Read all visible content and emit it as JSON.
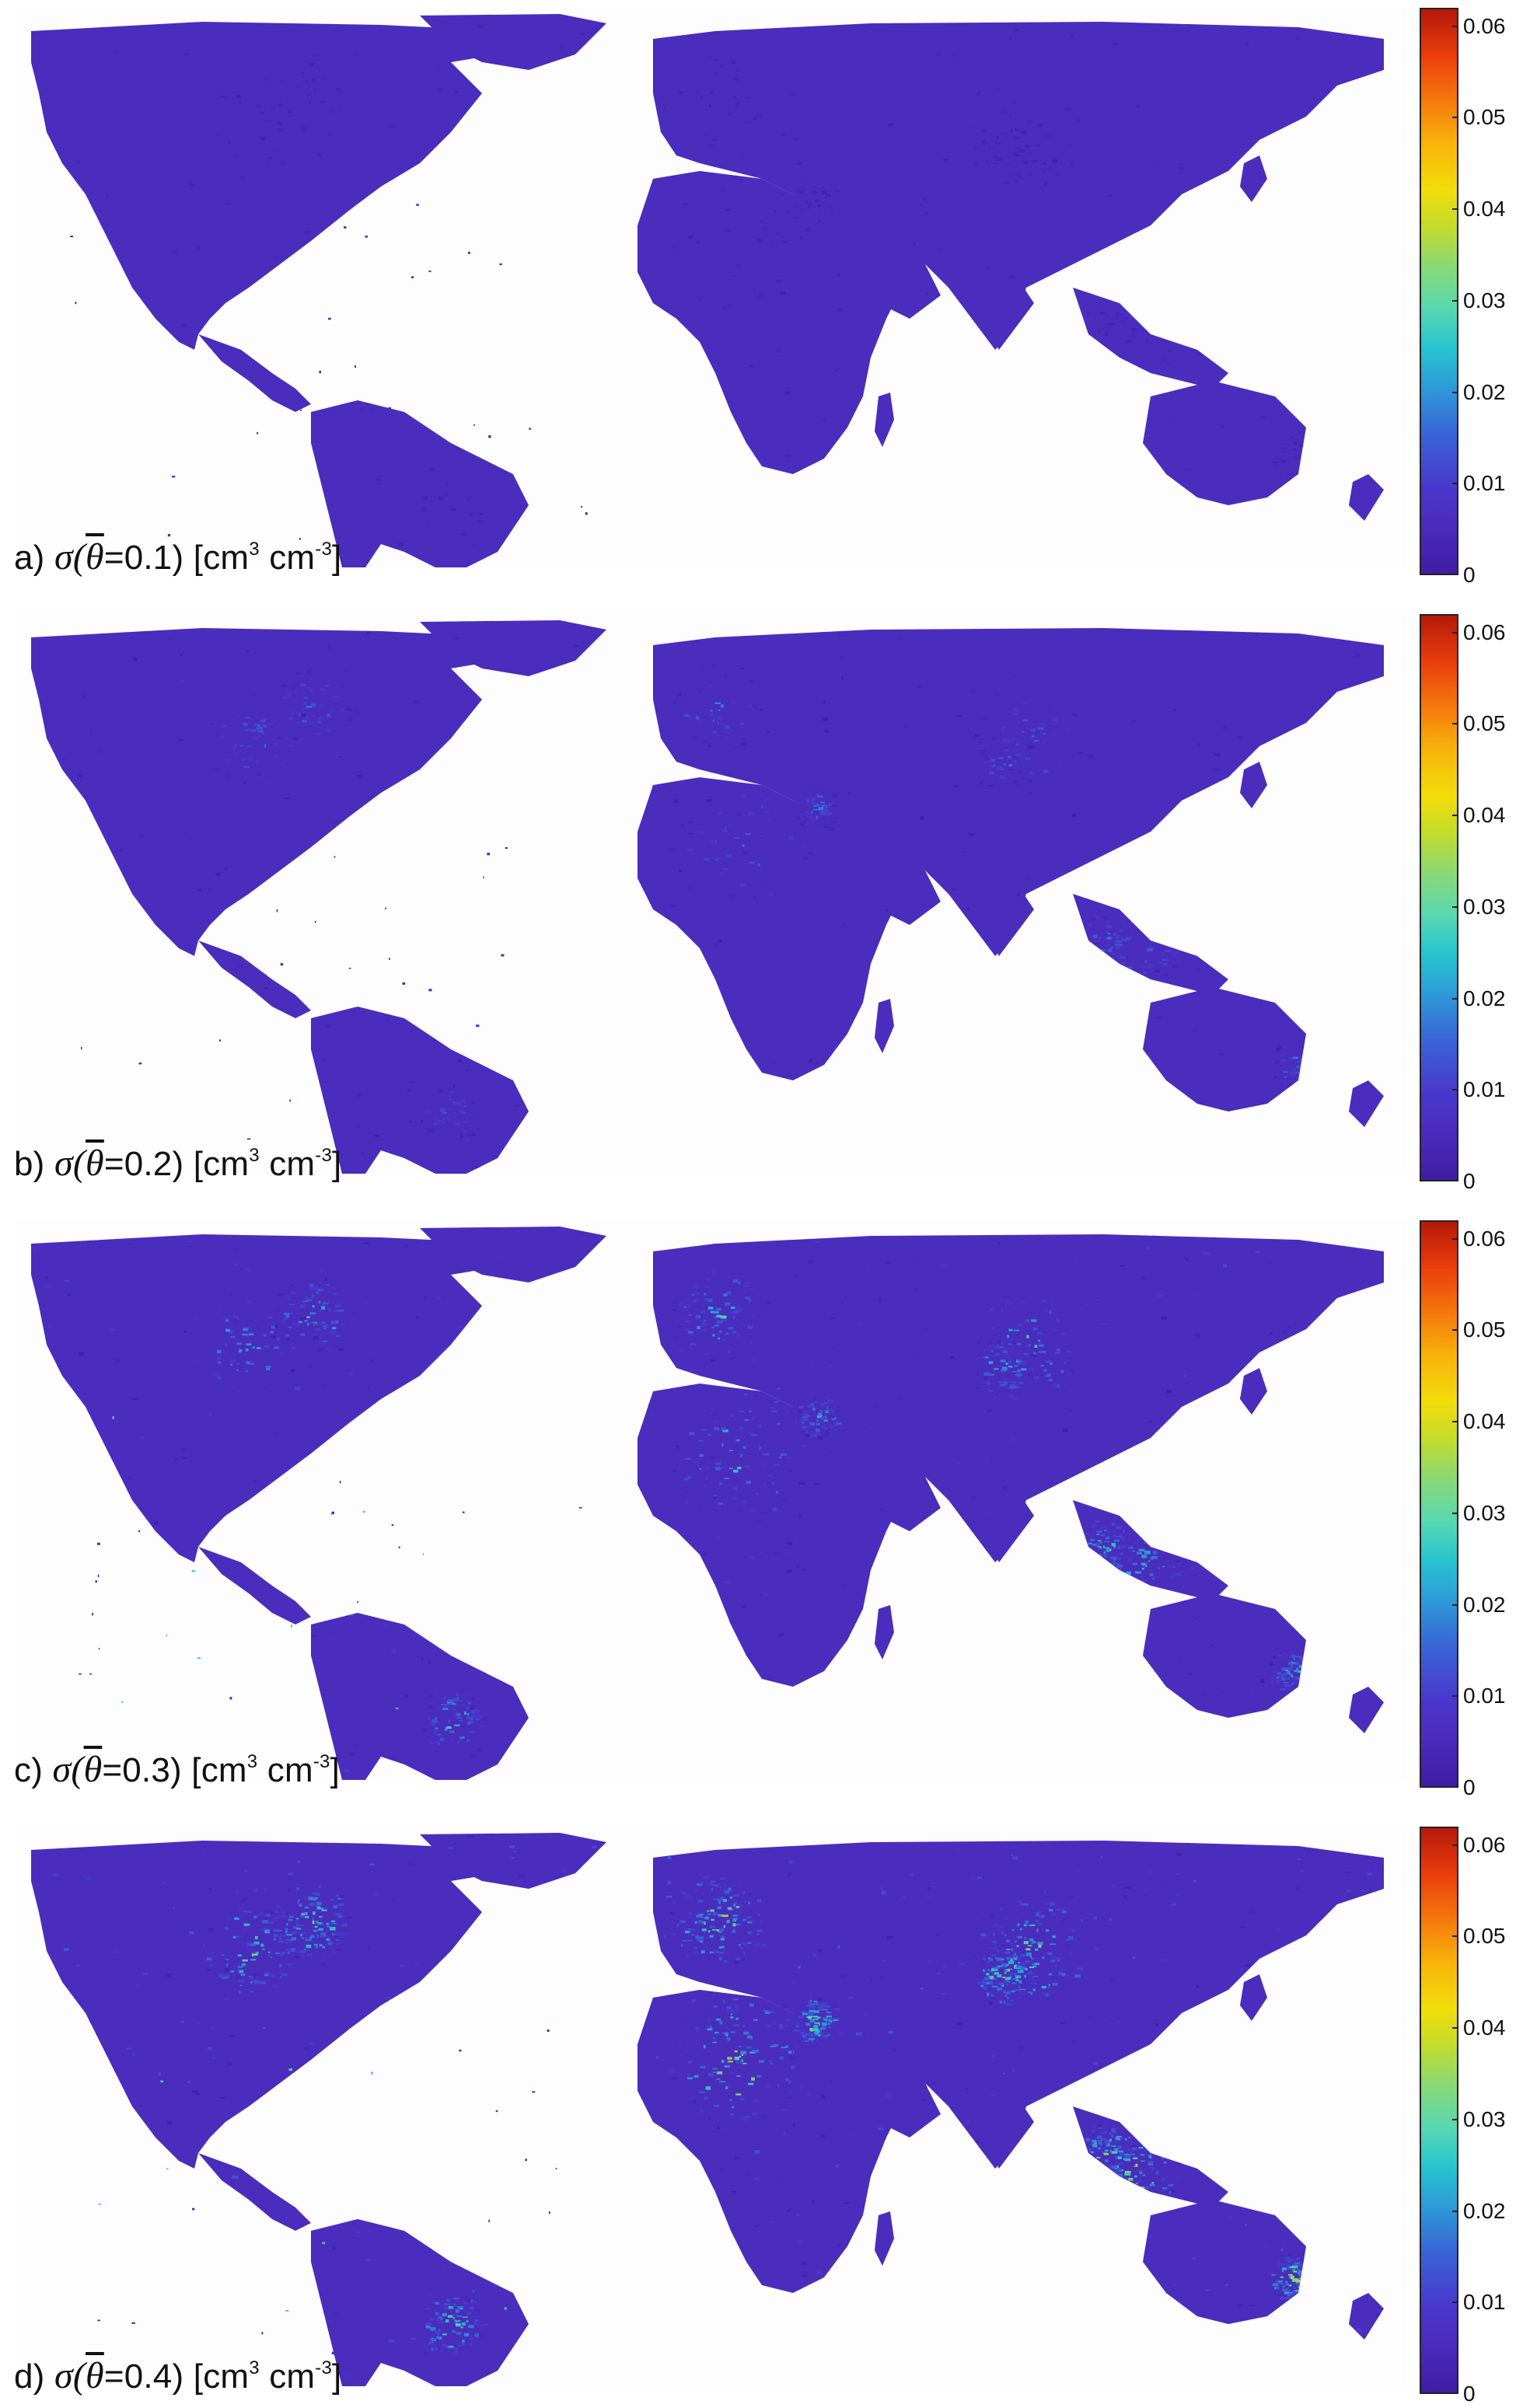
{
  "panels": [
    {
      "label_prefix": "a)",
      "sigma": "σ(",
      "theta": "θ",
      "value": "=0.1)",
      "units_open": "[cm",
      "units_mid": " cm",
      "units_sup1": "3",
      "units_sup2": "-3",
      "units_close": "]",
      "level": 0.1
    },
    {
      "label_prefix": "b)",
      "sigma": "σ(",
      "theta": "θ",
      "value": "=0.2)",
      "units_open": "[cm",
      "units_mid": " cm",
      "units_sup1": "3",
      "units_sup2": "-3",
      "units_close": "]",
      "level": 0.2
    },
    {
      "label_prefix": "c)",
      "sigma": "σ(",
      "theta": "θ",
      "value": "=0.3)",
      "units_open": "[cm",
      "units_mid": " cm",
      "units_sup1": "3",
      "units_sup2": "-3",
      "units_close": "]",
      "level": 0.3
    },
    {
      "label_prefix": "d)",
      "sigma": "σ(",
      "theta": "θ",
      "value": "=0.4)",
      "units_open": "[cm",
      "units_mid": " cm",
      "units_sup1": "3",
      "units_sup2": "-3",
      "units_close": "]",
      "level": 0.4
    }
  ],
  "colorbar": {
    "ticks": [
      "0",
      "0.01",
      "0.02",
      "0.03",
      "0.04",
      "0.05",
      "0.06"
    ],
    "min": 0,
    "max": 0.062
  },
  "colors": {
    "land_base": "#4a2dbd",
    "land_dark": "#3f22a6",
    "ocean": "#fdfdfd"
  }
}
